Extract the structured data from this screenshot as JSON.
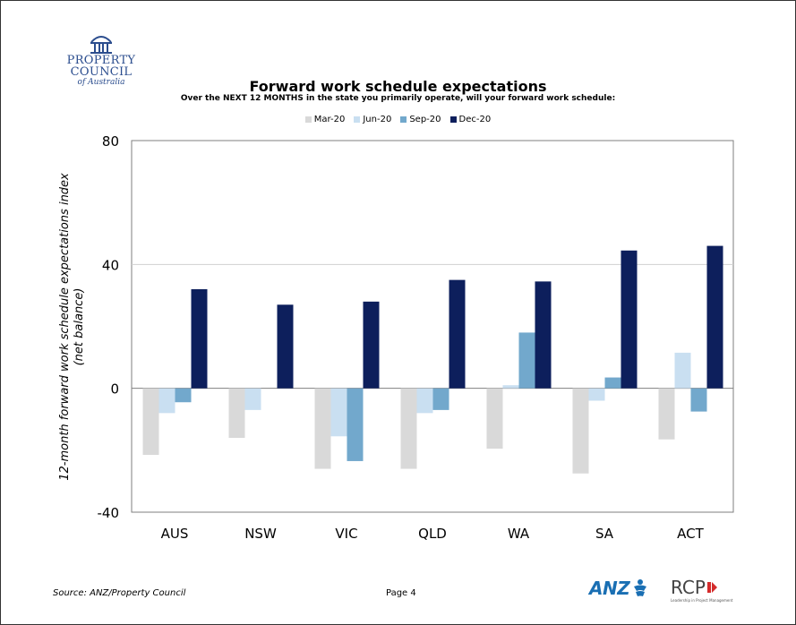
{
  "logo": {
    "line1": "PROPERTY",
    "line2": "COUNCIL",
    "line3": "of Australia",
    "color": "#2b4d8e"
  },
  "footer": {
    "source": "Source: ANZ/Property Council",
    "page": "Page 4",
    "anz_logo": "ANZ",
    "rcp_logo": "RCP",
    "rcp_tagline": "Leadership in Project Management"
  },
  "chart_data": {
    "type": "bar",
    "title": "Forward work schedule expectations",
    "subtitle": "Over the NEXT 12 MONTHS in the state you primarily operate, will your forward work schedule:",
    "ylabel_line1": "12-month forward work schedule expectations index",
    "ylabel_line2": "(net balance)",
    "xlabel": "",
    "ylim": [
      -40,
      80
    ],
    "yticks": [
      -40,
      0,
      40,
      80
    ],
    "grid": true,
    "legend_position": "top-center",
    "categories": [
      "AUS",
      "NSW",
      "VIC",
      "QLD",
      "WA",
      "SA",
      "ACT"
    ],
    "series": [
      {
        "name": "Mar-20",
        "color": "#d9d9d9",
        "values": [
          -21.5,
          -16,
          -26,
          -26,
          -19.5,
          -27.5,
          -16.5
        ]
      },
      {
        "name": "Jun-20",
        "color": "#c9dff1",
        "values": [
          -8,
          -7,
          -15.5,
          -8,
          1,
          -4,
          11.5
        ]
      },
      {
        "name": "Sep-20",
        "color": "#72a8cc",
        "values": [
          -4.5,
          0,
          -23.5,
          -7,
          18,
          3.5,
          -7.5
        ]
      },
      {
        "name": "Dec-20",
        "color": "#0d1f5c",
        "values": [
          32,
          27,
          28,
          35,
          34.5,
          44.5,
          46
        ]
      }
    ]
  }
}
